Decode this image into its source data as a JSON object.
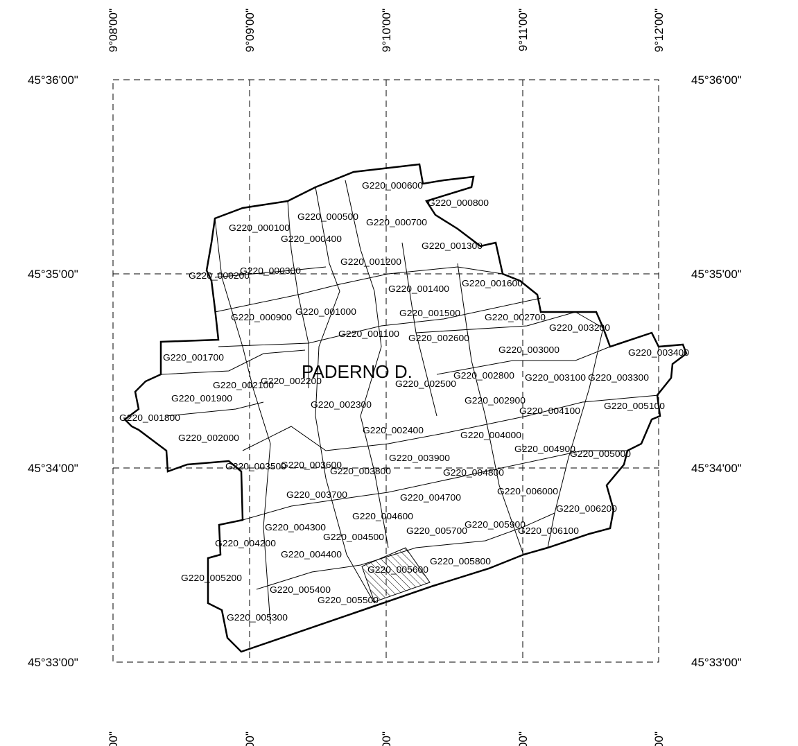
{
  "map": {
    "town": "PADERNO D.",
    "longitudes": [
      "9°08'00\"",
      "9°09'00\"",
      "9°10'00\"",
      "9°11'00\"",
      "9°12'00\""
    ],
    "latitudes": [
      "45°36'00\"",
      "45°35'00\"",
      "45°34'00\"",
      "45°33'00\""
    ],
    "zones": [
      "G220_000600",
      "G220_000800",
      "G220_000500",
      "G220_000700",
      "G220_000100",
      "G220_000400",
      "G220_001300",
      "G220_001200",
      "G220_000300",
      "G220_000200",
      "G220_001400",
      "G220_001600",
      "G220_001000",
      "G220_001500",
      "G220_000900",
      "G220_002700",
      "G220_003200",
      "G220_001100",
      "G220_002600",
      "G220_003000",
      "G220_003400",
      "G220_001700",
      "G220_002800",
      "G220_003100",
      "G220_003300",
      "G220_002200",
      "G220_002100",
      "G220_002500",
      "G220_001900",
      "G220_002900",
      "G220_002300",
      "G220_005100",
      "G220_004100",
      "G220_001800",
      "G220_002400",
      "G220_004000",
      "G220_002000",
      "G220_004900",
      "G220_005000",
      "G220_003900",
      "G220_003500",
      "G220_003600",
      "G220_003800",
      "G220_004800",
      "G220_003700",
      "G220_006000",
      "G220_004700",
      "G220_006200",
      "G220_004600",
      "G220_004300",
      "G220_005900",
      "G220_005700",
      "G220_006100",
      "G220_004500",
      "G220_004200",
      "G220_004400",
      "G220_005800",
      "G220_005600",
      "G220_005200",
      "G220_005400",
      "G220_005500",
      "G220_005300"
    ]
  }
}
